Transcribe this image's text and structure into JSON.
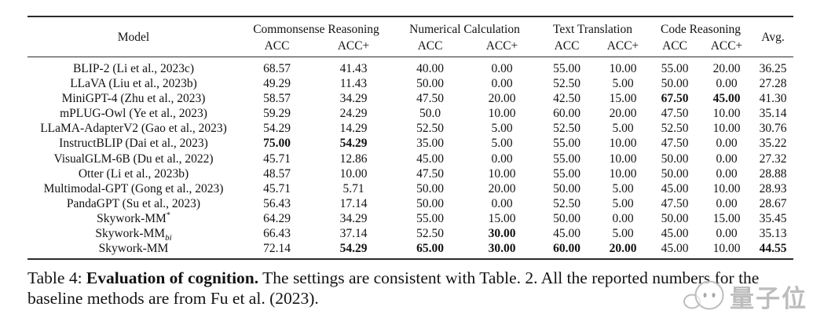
{
  "table": {
    "model_header": "Model",
    "avg_header": "Avg.",
    "groups": [
      "Commonsense Reasoning",
      "Numerical Calculation",
      "Text Translation",
      "Code Reasoning"
    ],
    "subheaders": [
      "ACC",
      "ACC+"
    ],
    "rows": [
      {
        "model": "BLIP-2 (Li et al., 2023c)",
        "values": [
          "68.57",
          "41.43",
          "40.00",
          "0.00",
          "55.00",
          "10.00",
          "55.00",
          "20.00",
          "36.25"
        ],
        "bold": []
      },
      {
        "model": "LLaVA (Liu et al., 2023b)",
        "values": [
          "49.29",
          "11.43",
          "50.00",
          "0.00",
          "52.50",
          "5.00",
          "50.00",
          "0.00",
          "27.28"
        ],
        "bold": []
      },
      {
        "model": "MiniGPT-4 (Zhu et al., 2023)",
        "values": [
          "58.57",
          "34.29",
          "47.50",
          "20.00",
          "42.50",
          "15.00",
          "67.50",
          "45.00",
          "41.30"
        ],
        "bold": [
          6,
          7
        ]
      },
      {
        "model": "mPLUG-Owl (Ye et al., 2023)",
        "values": [
          "59.29",
          "24.29",
          "50.0",
          "10.00",
          "60.00",
          "20.00",
          "47.50",
          "10.00",
          "35.14"
        ],
        "bold": []
      },
      {
        "model": "LLaMA-AdapterV2 (Gao et al., 2023)",
        "values": [
          "54.29",
          "14.29",
          "52.50",
          "5.00",
          "52.50",
          "5.00",
          "52.50",
          "10.00",
          "30.76"
        ],
        "bold": []
      },
      {
        "model": "InstructBLIP (Dai et al., 2023)",
        "values": [
          "75.00",
          "54.29",
          "35.00",
          "5.00",
          "55.00",
          "10.00",
          "47.50",
          "0.00",
          "35.22"
        ],
        "bold": [
          0,
          1
        ]
      },
      {
        "model": "VisualGLM-6B (Du et al., 2022)",
        "values": [
          "45.71",
          "12.86",
          "45.00",
          "0.00",
          "55.00",
          "10.00",
          "50.00",
          "0.00",
          "27.32"
        ],
        "bold": []
      },
      {
        "model": "Otter (Li et al., 2023b)",
        "values": [
          "48.57",
          "10.00",
          "47.50",
          "10.00",
          "55.00",
          "10.00",
          "50.00",
          "0.00",
          "28.88"
        ],
        "bold": []
      },
      {
        "model": "Multimodal-GPT (Gong et al., 2023)",
        "values": [
          "45.71",
          "5.71",
          "50.00",
          "20.00",
          "50.00",
          "5.00",
          "45.00",
          "10.00",
          "28.93"
        ],
        "bold": []
      },
      {
        "model": "PandaGPT (Su et al., 2023)",
        "values": [
          "56.43",
          "17.14",
          "50.00",
          "0.00",
          "52.50",
          "5.00",
          "47.50",
          "0.00",
          "28.67"
        ],
        "bold": []
      },
      {
        "model": "Skywork-MM",
        "model_sup": "*",
        "values": [
          "64.29",
          "34.29",
          "55.00",
          "15.00",
          "50.00",
          "0.00",
          "50.00",
          "15.00",
          "35.45"
        ],
        "bold": []
      },
      {
        "model": "Skywork-MM",
        "model_sub": "bi",
        "values": [
          "66.43",
          "37.14",
          "52.50",
          "30.00",
          "45.00",
          "5.00",
          "45.00",
          "0.00",
          "35.13"
        ],
        "bold": [
          3
        ]
      },
      {
        "model": "Skywork-MM",
        "values": [
          "72.14",
          "54.29",
          "65.00",
          "30.00",
          "60.00",
          "20.00",
          "45.00",
          "10.00",
          "44.55"
        ],
        "bold": [
          1,
          2,
          3,
          4,
          5,
          8
        ]
      }
    ]
  },
  "caption": {
    "prefix": "Table 4:",
    "bold": "Evaluation of cognition.",
    "rest": "The settings are consistent with Table. 2. All the reported numbers for the baseline methods are from Fu et al. (2023)."
  },
  "watermark": {
    "text": "量子位"
  },
  "colors": {
    "background": "#ffffff",
    "text": "#121212",
    "rule": "#2b2b2b",
    "watermark": "#bdbdbd"
  }
}
